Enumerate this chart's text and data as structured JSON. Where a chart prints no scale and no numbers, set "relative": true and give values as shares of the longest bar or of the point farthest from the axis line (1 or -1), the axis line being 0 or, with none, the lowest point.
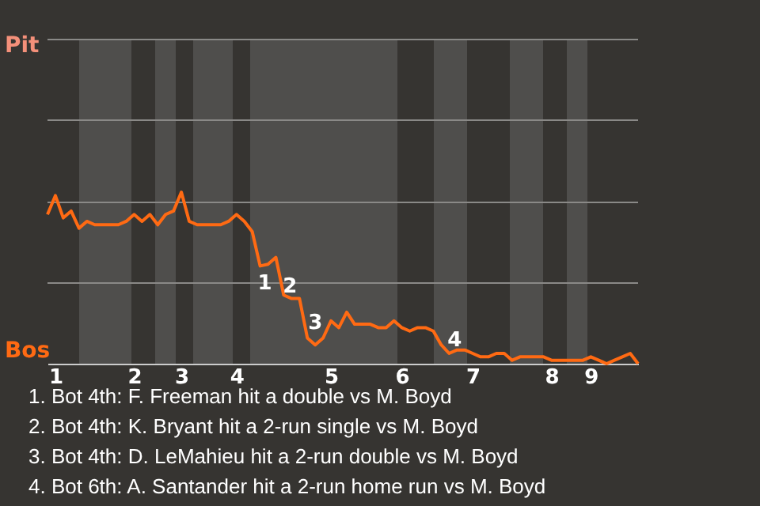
{
  "chart_data": {
    "type": "line",
    "relative": true,
    "marker": "none",
    "line_style": "solid",
    "ref_lines": [
      {
        "axis": "y",
        "value": 0.47,
        "color": "#8a8987"
      },
      {
        "axis": "y",
        "value": 0.94,
        "color": "#8a8987"
      },
      {
        "axis": "y",
        "value": 1.42,
        "color": "#8a8987"
      },
      {
        "axis": "y",
        "value": 1.89,
        "color": "#8a8987"
      }
    ],
    "categories": [
      null,
      "1",
      null,
      null,
      null,
      null,
      null,
      null,
      null,
      null,
      null,
      "2",
      null,
      null,
      null,
      null,
      null,
      "3",
      null,
      null,
      null,
      null,
      null,
      null,
      "4",
      null,
      null,
      null,
      null,
      null,
      null,
      null,
      null,
      null,
      null,
      null,
      "5",
      null,
      null,
      null,
      null,
      null,
      null,
      null,
      null,
      "6",
      null,
      null,
      null,
      null,
      null,
      null,
      null,
      null,
      "7",
      null,
      null,
      null,
      null,
      null,
      null,
      null,
      null,
      null,
      "8",
      null,
      null,
      null,
      null,
      "9",
      null,
      null,
      null,
      null,
      null,
      null
    ],
    "series": [
      {
        "color": "#ff6a13",
        "values": [
          0.87,
          0.98,
          0.85,
          0.89,
          0.79,
          0.83,
          0.81,
          0.81,
          0.81,
          0.81,
          0.83,
          0.87,
          0.83,
          0.87,
          0.81,
          0.87,
          0.89,
          1,
          0.83,
          0.81,
          0.81,
          0.81,
          0.81,
          0.83,
          0.87,
          0.83,
          0.77,
          0.57,
          0.58,
          0.62,
          0.4,
          0.38,
          0.38,
          0.15,
          0.11,
          0.15,
          0.25,
          0.21,
          0.3,
          0.23,
          0.23,
          0.23,
          0.21,
          0.21,
          0.25,
          0.21,
          0.19,
          0.21,
          0.21,
          0.19,
          0.11,
          0.06,
          0.08,
          0.08,
          0.06,
          0.04,
          0.04,
          0.06,
          0.06,
          0.02,
          0.04,
          0.04,
          0.04,
          0.04,
          0.02,
          0.02,
          0.02,
          0.02,
          0.02,
          0.04,
          0.02,
          0,
          0.02,
          0.04,
          0.06,
          0
        ]
      }
    ],
    "annotations": [
      "Pit",
      "Bos",
      "1",
      "2",
      "3",
      "4",
      "1. Bot 4th: F. Freeman hit a double vs M. Boyd",
      "2. Bot 4th: K. Bryant hit a 2-run single vs M. Boyd",
      "3. Bot 4th: D. LeMahieu hit a 2-run double vs M. Boyd",
      "4. Bot 6th: A. Santander hit a 2-run home run vs M. Boyd"
    ]
  }
}
